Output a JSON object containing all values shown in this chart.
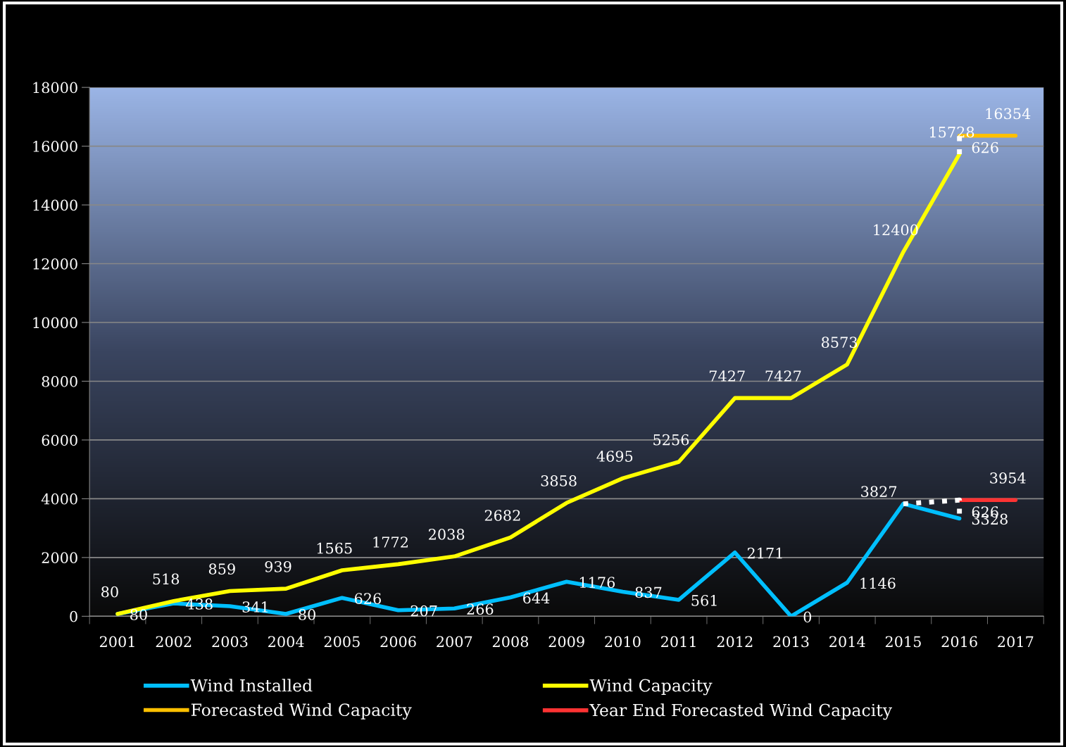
{
  "chart_data": {
    "type": "line",
    "categories": [
      "2001",
      "2002",
      "2003",
      "2004",
      "2005",
      "2006",
      "2007",
      "2008",
      "2009",
      "2010",
      "2011",
      "2012",
      "2013",
      "2014",
      "2015",
      "2016",
      "2017"
    ],
    "series": [
      {
        "name": "Wind Installed",
        "color": "#00bfff",
        "values": [
          80,
          438,
          341,
          80,
          626,
          207,
          266,
          644,
          1176,
          837,
          561,
          2171,
          0,
          1146,
          3827,
          3328,
          null
        ]
      },
      {
        "name": "Wind Capacity",
        "color": "#ffff00",
        "values": [
          80,
          518,
          859,
          939,
          1565,
          1772,
          2038,
          2682,
          3858,
          4695,
          5256,
          7427,
          7427,
          8573,
          12400,
          15728,
          null
        ]
      },
      {
        "name": "Forecasted Wind Capacity",
        "color": "#ffc000",
        "values": [
          null,
          null,
          null,
          null,
          null,
          null,
          null,
          null,
          null,
          null,
          null,
          null,
          null,
          null,
          null,
          16354,
          16354
        ],
        "value_labels": [
          null,
          null,
          null,
          null,
          null,
          null,
          null,
          null,
          null,
          null,
          null,
          null,
          null,
          null,
          null,
          null,
          "16354"
        ]
      },
      {
        "name": "Year End Forecasted Wind Capacity",
        "color": "#ff3333",
        "values": [
          null,
          null,
          null,
          null,
          null,
          null,
          null,
          null,
          null,
          null,
          null,
          null,
          null,
          null,
          null,
          3954,
          3954
        ],
        "value_labels": [
          null,
          null,
          null,
          null,
          null,
          null,
          null,
          null,
          null,
          null,
          null,
          null,
          null,
          null,
          null,
          null,
          "3954"
        ]
      }
    ],
    "annotations": [
      "626",
      "626"
    ],
    "data_labels": true,
    "ylim": [
      0,
      18000
    ],
    "yticks": [
      0,
      2000,
      4000,
      6000,
      8000,
      10000,
      12000,
      14000,
      16000,
      18000
    ],
    "grid": "y",
    "legend": "bottom"
  }
}
